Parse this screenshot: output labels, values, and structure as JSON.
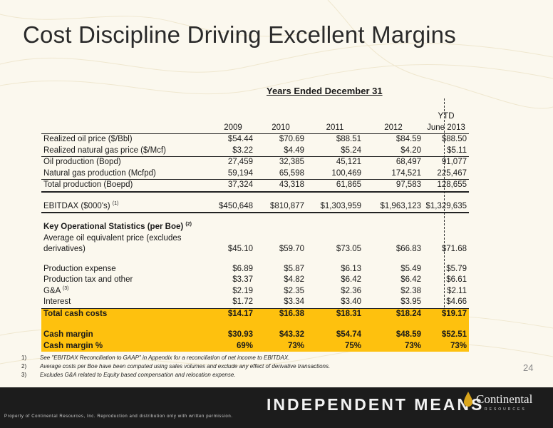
{
  "title": "Cost Discipline Driving Excellent Margins",
  "table": {
    "header_line": "Years Ended December 31",
    "ytd_label": "YTD",
    "columns": [
      "2009",
      "2010",
      "2011",
      "2012",
      "June 2013"
    ],
    "rows": {
      "oil_price": {
        "label": "Realized oil price ($/Bbl)",
        "values": [
          "$54.44",
          "$70.69",
          "$88.51",
          "$84.59",
          "$88.50"
        ]
      },
      "gas_price": {
        "label": "Realized natural gas price ($/Mcf)",
        "values": [
          "$3.22",
          "$4.49",
          "$5.24",
          "$4.20",
          "$5.11"
        ]
      },
      "oil_production": {
        "label": "Oil production (Bopd)",
        "values": [
          "27,459",
          "32,385",
          "45,121",
          "68,497",
          "91,077"
        ]
      },
      "gas_production": {
        "label": "Natural gas production (Mcfpd)",
        "values": [
          "59,194",
          "65,598",
          "100,469",
          "174,521",
          "225,467"
        ]
      },
      "total_production": {
        "label": "Total production (Boepd)",
        "values": [
          "37,324",
          "43,318",
          "61,865",
          "97,583",
          "128,655"
        ]
      },
      "ebitdax": {
        "label": "EBITDAX ($000's)",
        "sup": "(1)",
        "values": [
          "$450,648",
          "$810,877",
          "$1,303,959",
          "$1,963,123",
          "$1,329,635"
        ]
      },
      "key_stats": {
        "label": "Key Operational Statistics (per Boe)",
        "sup": "(2)"
      },
      "avg_price": {
        "label_line1": "Average oil equivalent price (excludes",
        "label_line2": "derivatives)",
        "values": [
          "$45.10",
          "$59.70",
          "$73.05",
          "$66.83",
          "$71.68"
        ]
      },
      "production_expense": {
        "label": "Production expense",
        "values": [
          "$6.89",
          "$5.87",
          "$6.13",
          "$5.49",
          "$5.79"
        ]
      },
      "production_tax": {
        "label": "Production tax and other",
        "values": [
          "$3.37",
          "$4.82",
          "$6.42",
          "$6.42",
          "$6.61"
        ]
      },
      "ga": {
        "label": "G&A",
        "sup": "(3)",
        "values": [
          "$2.19",
          "$2.35",
          "$2.36",
          "$2.38",
          "$2.11"
        ]
      },
      "interest": {
        "label": "Interest",
        "values": [
          "$1.72",
          "$3.34",
          "$3.40",
          "$3.95",
          "$4.66"
        ]
      },
      "total_cash_costs": {
        "label": "Total cash costs",
        "values": [
          "$14.17",
          "$16.38",
          "$18.31",
          "$18.24",
          "$19.17"
        ]
      },
      "cash_margin": {
        "label": "Cash margin",
        "values": [
          "$30.93",
          "$43.32",
          "$54.74",
          "$48.59",
          "$52.51"
        ]
      },
      "cash_margin_pct": {
        "label": "Cash margin %",
        "values": [
          "69%",
          "73%",
          "75%",
          "73%",
          "73%"
        ]
      }
    }
  },
  "footnotes": [
    {
      "num": "1)",
      "text": "See \"EBITDAX Reconciliation to GAAP\" in Appendix for a reconciliation of net income to EBITDAX."
    },
    {
      "num": "2)",
      "text": "Average costs per Boe have been computed using sales volumes and exclude any effect of derivative transactions."
    },
    {
      "num": "3)",
      "text": "Excludes G&A related to Equity based compensation and relocation expense."
    }
  ],
  "page_number": "24",
  "footer": {
    "tagline": "INDEPENDENT MEANS",
    "brand": "Continental",
    "brand_sub": "RESOURCES",
    "copyright": "Property of Continental Resources, Inc. Reproduction and distribution only with written permission."
  },
  "colors": {
    "highlight": "#fec10e",
    "footer_bg": "#1c1c1c",
    "background": "#fbf8ee"
  }
}
